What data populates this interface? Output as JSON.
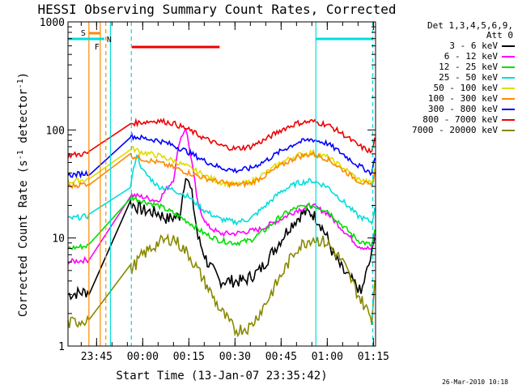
{
  "chart_data": {
    "type": "line",
    "title": "HESSI Observing Summary Count Rates, Corrected",
    "xlabel": "Start Time (13-Jan-07 23:35:42)",
    "ylabel_main": "Corrected Count Rate (s",
    "ylabel_sup1": "-1",
    "ylabel_mid": " detector",
    "ylabel_sup2": "-1",
    "ylabel_end": ")",
    "y_scale": "log",
    "ylim": [
      1,
      1000
    ],
    "y_ticks": [
      {
        "v": 1,
        "label": "1"
      },
      {
        "v": 10,
        "label": "10"
      },
      {
        "v": 100,
        "label": "100"
      },
      {
        "v": 1000,
        "label": "1000"
      }
    ],
    "xlim_minutes": [
      -24.3,
      75.7
    ],
    "x_ticks": [
      {
        "t": -15,
        "label": "23:45"
      },
      {
        "t": 0,
        "label": "00:00"
      },
      {
        "t": 15,
        "label": "00:15"
      },
      {
        "t": 30,
        "label": "00:30"
      },
      {
        "t": 45,
        "label": "00:45"
      },
      {
        "t": 60,
        "label": "01:00"
      },
      {
        "t": 75,
        "label": "01:15"
      }
    ],
    "legend_title_1": "Det 1,3,4,5,6,9,",
    "legend_title_2": "Att 0",
    "legend_placement": "right",
    "series": [
      {
        "name": "3 - 6 keV",
        "color": "#000000",
        "x": [
          -24.3,
          -17.5,
          -4,
          0,
          5,
          8,
          12,
          14,
          16,
          18,
          21,
          25,
          28,
          33,
          38,
          43,
          48,
          52,
          55,
          57.5,
          60,
          62,
          65,
          68,
          70,
          71,
          72,
          73,
          74.5,
          75.5
        ],
        "y": [
          3,
          3.2,
          21,
          18,
          17,
          15,
          16,
          40,
          25,
          10,
          6,
          4,
          4,
          4,
          5,
          8,
          13,
          17,
          17,
          14,
          10,
          7,
          5,
          4,
          3.5,
          3,
          4,
          5,
          7,
          10
        ]
      },
      {
        "name": "6 - 12 keV",
        "color": "#ff00ff",
        "x": [
          -24.3,
          -17.5,
          -4,
          0,
          5,
          10,
          12,
          14,
          16,
          18,
          21,
          25,
          30,
          38,
          45,
          50,
          55,
          60,
          65,
          70,
          74.5,
          75.5
        ],
        "y": [
          6,
          6.3,
          25,
          24,
          22,
          35,
          80,
          105,
          50,
          20,
          13,
          11,
          11,
          12,
          15,
          18,
          20,
          17,
          12,
          8.5,
          7.8,
          11
        ]
      },
      {
        "name": "12 - 25 keV",
        "color": "#00dd00",
        "x": [
          -24.3,
          -17.5,
          -4,
          0,
          5,
          10,
          15,
          20,
          25,
          30,
          35,
          40,
          45,
          50,
          55,
          60,
          65,
          70,
          74.5,
          75.5
        ],
        "y": [
          8,
          8.5,
          24,
          22,
          20,
          17,
          14,
          11,
          9.5,
          9,
          9.5,
          12,
          16,
          19,
          20,
          18,
          13,
          9.5,
          8.5,
          12
        ]
      },
      {
        "name": "25 - 50 keV",
        "color": "#00dddd",
        "x": [
          -24.3,
          -17.5,
          -4,
          -2,
          0,
          5,
          10,
          15,
          20,
          25,
          30,
          35,
          40,
          45,
          50,
          55,
          60,
          65,
          70,
          74.5,
          75.5
        ],
        "y": [
          15,
          16,
          30,
          60,
          42,
          30,
          28,
          24,
          18,
          15,
          14,
          15,
          20,
          27,
          32,
          34,
          30,
          22,
          16,
          14,
          19
        ]
      },
      {
        "name": "50 - 100 keV",
        "color": "#dddd00",
        "x": [
          -24.3,
          -17.5,
          -4,
          0,
          5,
          10,
          15,
          20,
          25,
          30,
          35,
          40,
          45,
          50,
          55,
          60,
          65,
          70,
          74.5,
          75.5
        ],
        "y": [
          33,
          35,
          68,
          62,
          58,
          52,
          45,
          38,
          33,
          31,
          33,
          40,
          50,
          58,
          62,
          56,
          45,
          35,
          32,
          44
        ]
      },
      {
        "name": "100 - 300 keV",
        "color": "#ff8800",
        "x": [
          -24.3,
          -17.5,
          -4,
          0,
          5,
          10,
          15,
          20,
          25,
          30,
          35,
          40,
          45,
          50,
          55,
          60,
          65,
          70,
          74.5,
          75.5
        ],
        "y": [
          30,
          32,
          58,
          54,
          50,
          45,
          40,
          36,
          33,
          31,
          32,
          38,
          47,
          56,
          60,
          54,
          43,
          34,
          30,
          41
        ]
      },
      {
        "name": "300 - 800 keV",
        "color": "#0000ff",
        "x": [
          -24.3,
          -17.5,
          -4,
          0,
          5,
          10,
          15,
          20,
          25,
          30,
          35,
          40,
          45,
          50,
          55,
          60,
          65,
          70,
          74.5,
          75.5
        ],
        "y": [
          38,
          40,
          88,
          84,
          80,
          72,
          62,
          52,
          45,
          42,
          44,
          52,
          64,
          76,
          82,
          75,
          60,
          47,
          40,
          55
        ]
      },
      {
        "name": "800 - 7000 keV",
        "color": "#ee0000",
        "x": [
          -24.3,
          -17.5,
          -4,
          0,
          5,
          10,
          15,
          20,
          25,
          30,
          35,
          40,
          45,
          50,
          55,
          60,
          65,
          70,
          74.5,
          75.5
        ],
        "y": [
          58,
          61,
          115,
          118,
          122,
          115,
          100,
          84,
          72,
          67,
          70,
          82,
          100,
          115,
          120,
          112,
          92,
          72,
          62,
          85
        ]
      },
      {
        "name": "7000 - 20000 keV",
        "color": "#888800",
        "x": [
          -24.3,
          -17.5,
          -4,
          0,
          5,
          10,
          15,
          20,
          25,
          30,
          35,
          40,
          45,
          50,
          55,
          60,
          65,
          70,
          74.5,
          75.5
        ],
        "y": [
          1.6,
          1.8,
          5,
          7,
          9,
          10,
          7,
          4,
          2.2,
          1.4,
          1.5,
          2.5,
          4.5,
          8,
          10,
          9,
          6,
          3,
          1.8,
          4
        ]
      }
    ],
    "markers": {
      "solar_flags": [
        {
          "label": "S",
          "color": "#ff8800",
          "x_start": -17.5,
          "x_end": -13.8
        },
        {
          "label": "F",
          "color": "#ff8800",
          "x_start": -13.8,
          "x_end": -13.8
        }
      ],
      "saa_band": {
        "color": "#ff8800",
        "x_start": -17.5,
        "x_end": -13.8
      },
      "night_label": "N",
      "night_bars": [
        {
          "color": "#00dddd",
          "x_start": -24.3,
          "x_end": -12.5
        },
        {
          "color": "#00dddd",
          "x_start": 56.3,
          "x_end": 75.0
        }
      ],
      "flare_bar": {
        "color": "#ee0000",
        "x_start": -3.5,
        "x_end": 25.0
      },
      "vlines_solid": [
        {
          "x": -17.5,
          "color": "#ff8800"
        },
        {
          "x": -13.8,
          "color": "#ff8800"
        },
        {
          "x": -10.5,
          "color": "#00dddd"
        },
        {
          "x": 56.3,
          "color": "#00dddd"
        }
      ],
      "vlines_dashed": [
        {
          "x": -12.0,
          "color": "#ff8800"
        },
        {
          "x": -3.7,
          "color": "#00dddd"
        },
        {
          "x": 74.8,
          "color": "#00dddd"
        }
      ]
    }
  },
  "timestamp": "26-Mar-2010 10:18"
}
